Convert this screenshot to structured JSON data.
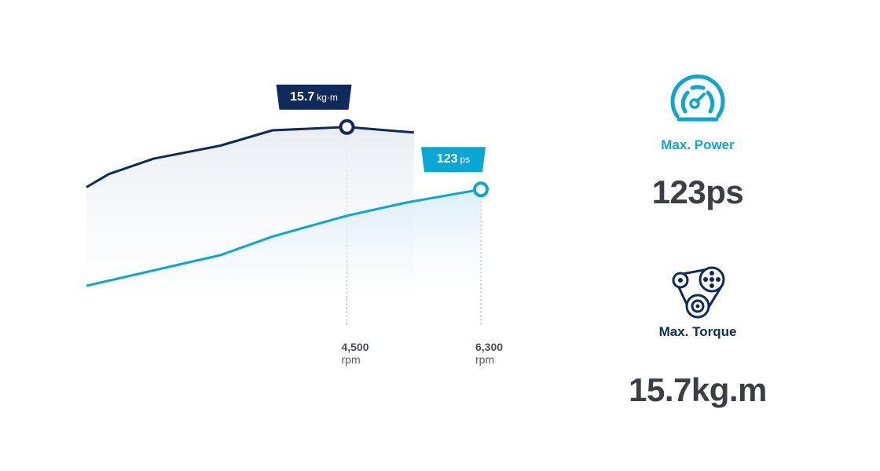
{
  "chart_data": {
    "type": "line",
    "title": "",
    "xlabel": "",
    "ylabel": "",
    "x_unit": "rpm",
    "x_ticks": [
      {
        "value": 4500,
        "label": "4,500",
        "unit": "rpm"
      },
      {
        "value": 6300,
        "label": "6,300",
        "unit": "rpm"
      }
    ],
    "series": [
      {
        "key": "torque",
        "color": "#0d2a5a",
        "points": [
          [
            1000,
            1.0
          ],
          [
            1300,
            1.12
          ],
          [
            1900,
            1.26
          ],
          [
            2800,
            1.38
          ],
          [
            3500,
            1.52
          ],
          [
            4500,
            1.55
          ],
          [
            5400,
            1.5
          ]
        ],
        "peak": {
          "x": 4500,
          "y": 1.55
        },
        "callout": {
          "value": "15.7",
          "unit": "kg·m"
        }
      },
      {
        "key": "power",
        "color": "#0aa7d4",
        "points": [
          [
            1000,
            0.1
          ],
          [
            2800,
            0.38
          ],
          [
            3500,
            0.55
          ],
          [
            4500,
            0.74
          ],
          [
            5300,
            0.86
          ],
          [
            6300,
            0.98
          ]
        ],
        "peak": {
          "x": 6300,
          "y": 0.98
        },
        "callout": {
          "value": "123",
          "unit": "ps"
        }
      }
    ]
  },
  "colors": {
    "navy": "#0d2a5a",
    "cyan": "#0aa7d4"
  },
  "stats": {
    "power": {
      "icon": "speedometer-icon",
      "label": "Max. Power",
      "value": "123ps"
    },
    "torque": {
      "icon": "pulley-belt-icon",
      "label": "Max. Torque",
      "value": "15.7kg.m"
    }
  }
}
